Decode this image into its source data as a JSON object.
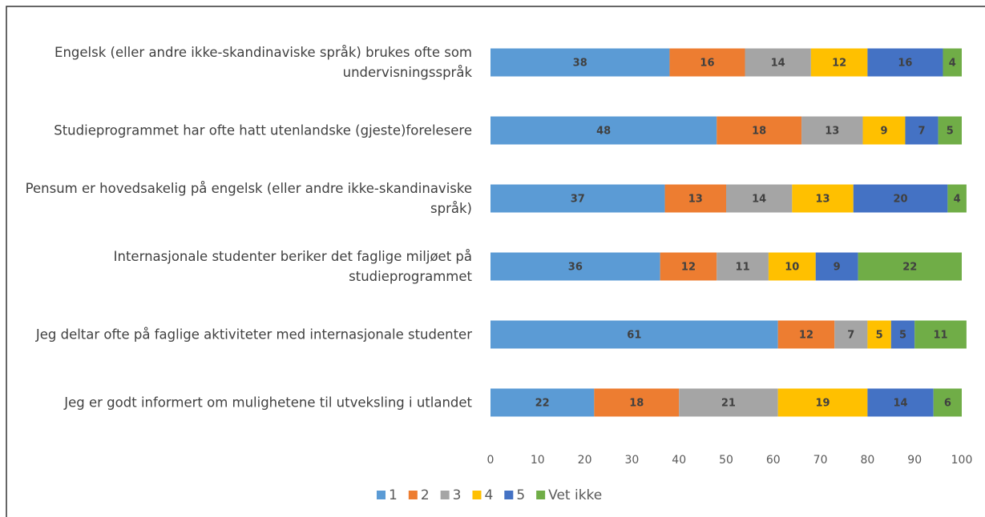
{
  "chart_data": {
    "type": "stacked_barh",
    "categories": [
      "Engelsk (eller andre ikke-skandinaviske språk) brukes ofte som undervisningsspråk",
      "Studieprogrammet har ofte hatt utenlandske (gjeste)forelesere",
      "Pensum er hovedsakelig på engelsk (eller andre ikke-skandinaviske språk)",
      "Internasjonale studenter beriker det faglige miljøet på studieprogrammet",
      "Jeg deltar ofte på faglige aktiviteter med internasjonale studenter",
      "Jeg er godt informert om mulighetene til utveksling i utlandet"
    ],
    "series": [
      {
        "name": "1",
        "color": "#5b9bd5",
        "values": [
          38,
          48,
          37,
          36,
          61,
          22
        ]
      },
      {
        "name": "2",
        "color": "#ed7d31",
        "values": [
          16,
          18,
          13,
          12,
          12,
          18
        ]
      },
      {
        "name": "3",
        "color": "#a5a5a5",
        "values": [
          14,
          13,
          14,
          11,
          7,
          21
        ]
      },
      {
        "name": "4",
        "color": "#ffc000",
        "values": [
          12,
          9,
          13,
          10,
          5,
          19
        ]
      },
      {
        "name": "5",
        "color": "#4472c4",
        "values": [
          16,
          7,
          20,
          9,
          5,
          14
        ]
      },
      {
        "name": "Vet ikke",
        "color": "#70ad47",
        "values": [
          4,
          5,
          4,
          22,
          11,
          6
        ]
      }
    ],
    "xlim": [
      0,
      100
    ],
    "xticks": [
      0,
      10,
      20,
      30,
      40,
      50,
      60,
      70,
      80,
      90,
      100
    ],
    "grid": false,
    "legend": "bottom"
  }
}
